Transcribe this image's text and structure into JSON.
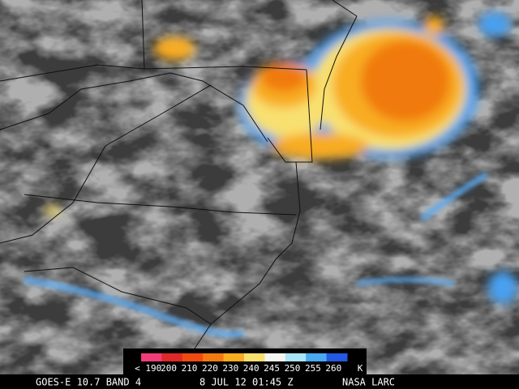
{
  "image": {
    "legend": {
      "labels": [
        "< 190",
        "200",
        "210",
        "220",
        "230",
        "240",
        "245",
        "250",
        "255",
        "260"
      ],
      "unit": "K",
      "colors": [
        "#f03c78",
        "#e02828",
        "#f04a10",
        "#f07a10",
        "#f8ac20",
        "#f8e070",
        "#f4f4f0",
        "#a8e4f4",
        "#48a8f0",
        "#2458e0"
      ]
    },
    "footer": {
      "satellite": "GOES-E 10.7 BAND 4",
      "time": "8 JUL 12 01:45 Z",
      "source": "NASA LARC"
    }
  }
}
